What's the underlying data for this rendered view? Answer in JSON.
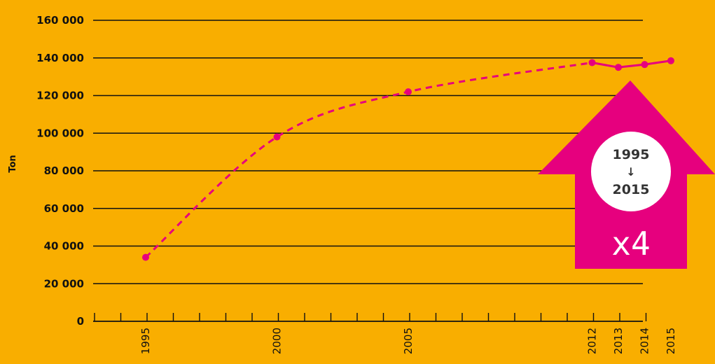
{
  "chart_data": {
    "type": "line",
    "ylabel": "Ton",
    "xlabel": "",
    "ylim": [
      0,
      160000
    ],
    "y_ticks": [
      0,
      20000,
      40000,
      60000,
      80000,
      100000,
      120000,
      140000,
      160000
    ],
    "y_tick_labels": [
      "0",
      "20 000",
      "40 000",
      "60 000",
      "80 000",
      "100 000",
      "120 000",
      "140 000",
      "160 000"
    ],
    "x_tick_labels": [
      "1995",
      "2000",
      "2005",
      "2012",
      "2013",
      "2014",
      "2015"
    ],
    "grid": true,
    "colors": {
      "background": "#F9AE00",
      "series": "#E6007E",
      "axis": "#111111"
    },
    "series": [
      {
        "style": "dashed",
        "points": [
          {
            "x": 1995,
            "y": 34000
          },
          {
            "x": 2000,
            "y": 98000
          },
          {
            "x": 2005,
            "y": 122000
          },
          {
            "x": 2012,
            "y": 137500
          }
        ]
      },
      {
        "style": "solid",
        "points": [
          {
            "x": 2012,
            "y": 137500
          },
          {
            "x": 2013,
            "y": 135000
          },
          {
            "x": 2014,
            "y": 136500
          },
          {
            "x": 2015,
            "y": 138500
          }
        ]
      }
    ]
  },
  "badge": {
    "year_from": "1995",
    "arrow": "↓",
    "year_to": "2015",
    "multiplier": "x4",
    "icon": "up-arrow-icon"
  }
}
